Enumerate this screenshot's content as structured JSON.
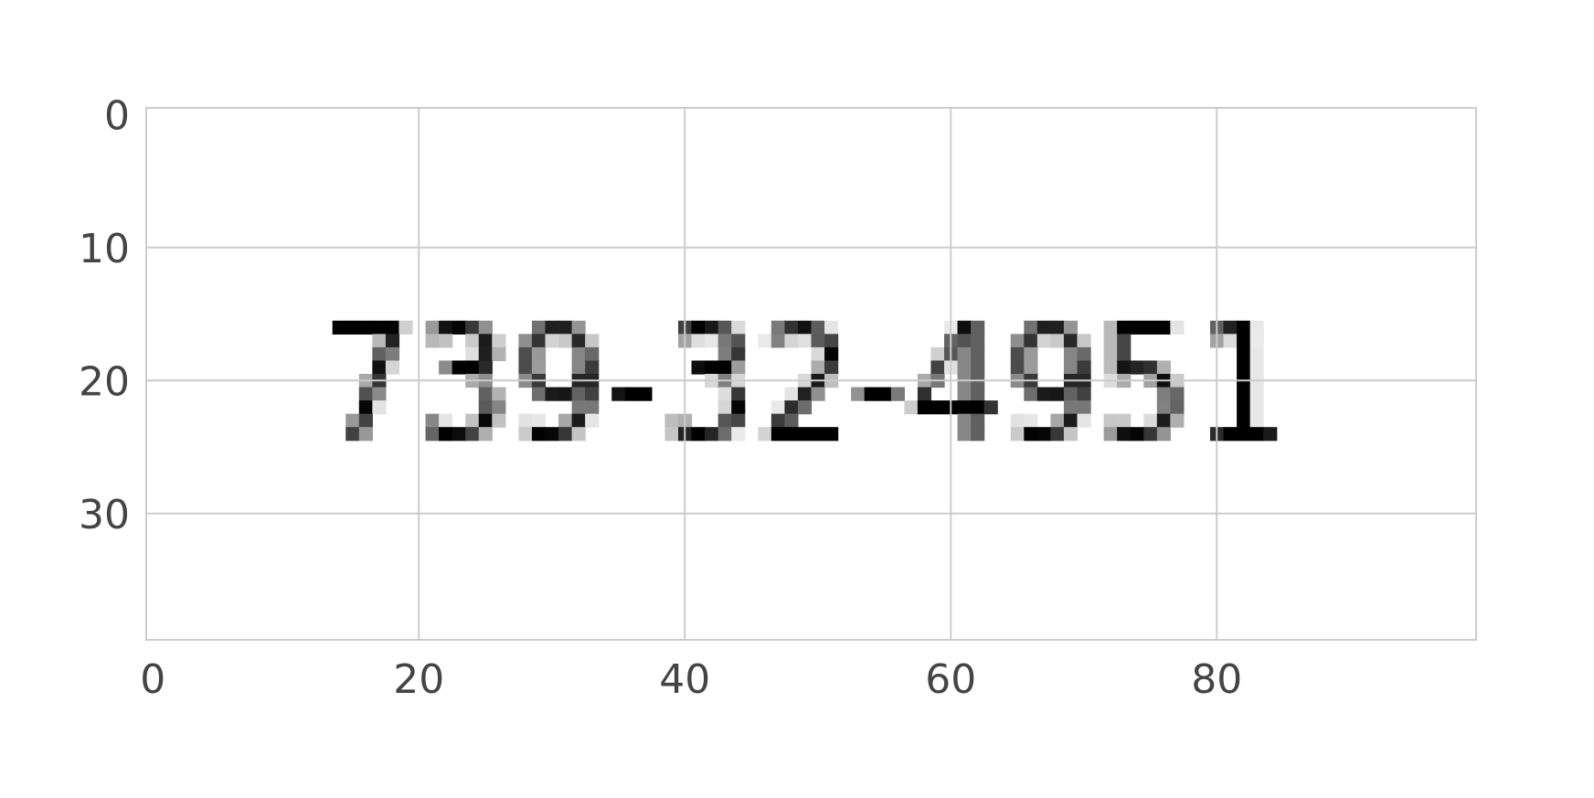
{
  "chart_data": {
    "type": "heatmap",
    "image_text": "739-32-4951",
    "x_range": [
      0,
      99
    ],
    "y_range": [
      0,
      39
    ],
    "y_axis_inverted": true,
    "x_ticks": [
      "0",
      "20",
      "40",
      "60",
      "80"
    ],
    "y_ticks": [
      "0",
      "10",
      "20",
      "30"
    ],
    "x_tick_values": [
      0,
      20,
      40,
      60,
      80
    ],
    "y_tick_values": [
      0,
      10,
      20,
      30
    ],
    "grid": true,
    "colormap": "gray",
    "colors": {
      "background": "#ffffff",
      "grid": "#cccccc",
      "ink": "#000000",
      "tick_text": "#444444"
    }
  }
}
